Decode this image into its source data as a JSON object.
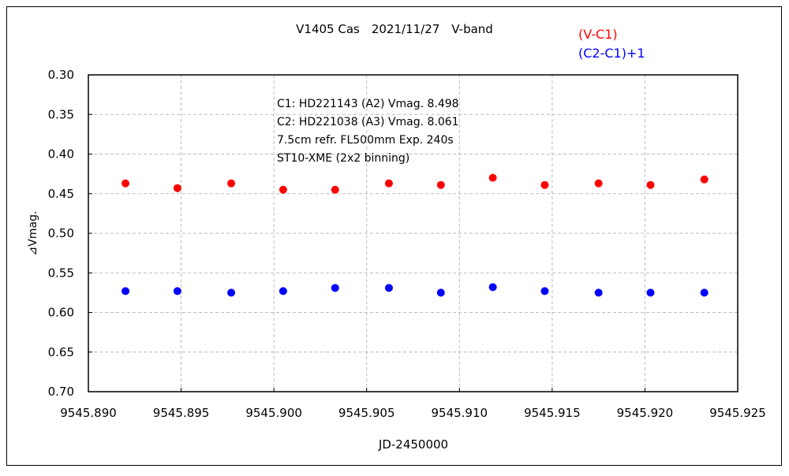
{
  "chart_data": {
    "type": "scatter",
    "title": "V1405 Cas　2021/11/27　V-band",
    "xlabel": "JD-2450000",
    "ylabel": "⊿Vmag.",
    "xlim": [
      9545.89,
      9545.925
    ],
    "ylim": [
      0.3,
      0.7
    ],
    "y_inverted": true,
    "grid": true,
    "legend_placement": "top-right",
    "x_ticks": [
      "9545.890",
      "9545.895",
      "9545.900",
      "9545.905",
      "9545.910",
      "9545.915",
      "9545.920",
      "9545.925"
    ],
    "y_ticks": [
      "0.30",
      "0.35",
      "0.40",
      "0.45",
      "0.50",
      "0.55",
      "0.60",
      "0.65",
      "0.70"
    ],
    "annotations": [
      "C1: HD221143 (A2) Vmag. 8.498",
      "C2: HD221038 (A3) Vmag. 8.061",
      "7.5cm refr. FL500mm Exp. 240s",
      "ST10-XME (2x2 binning)"
    ],
    "x": [
      9545.892,
      9545.8948,
      9545.8977,
      9545.9005,
      9545.9033,
      9545.9062,
      9545.909,
      9545.9118,
      9545.9146,
      9545.9175,
      9545.9203,
      9545.9232
    ],
    "series": [
      {
        "name": "(V-C1)",
        "color": "#ff0000",
        "values": [
          0.437,
          0.443,
          0.437,
          0.445,
          0.445,
          0.437,
          0.439,
          0.43,
          0.439,
          0.437,
          0.439,
          0.432
        ]
      },
      {
        "name": "(C2-C1)+1",
        "color": "#0000ff",
        "values": [
          0.573,
          0.573,
          0.575,
          0.573,
          0.569,
          0.569,
          0.575,
          0.568,
          0.573,
          0.575,
          0.575,
          0.575
        ]
      }
    ]
  }
}
